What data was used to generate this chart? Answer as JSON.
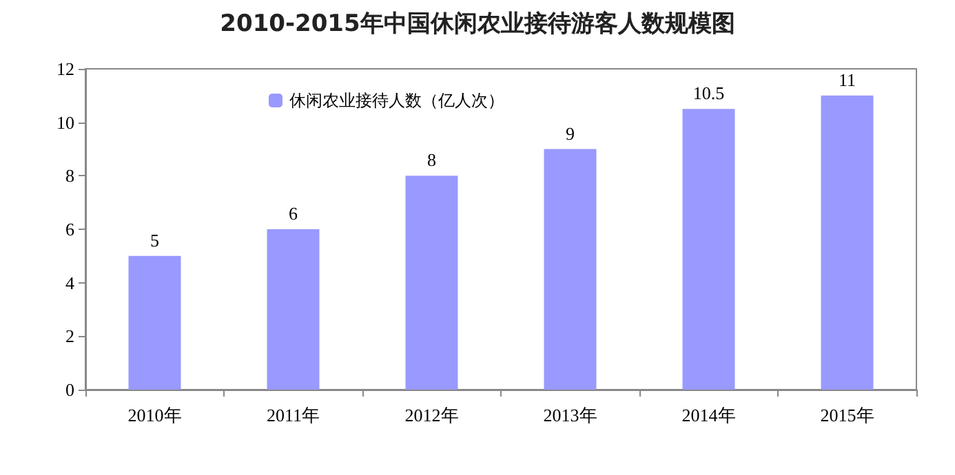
{
  "chart_data": {
    "type": "bar",
    "title": "2010-2015年中国休闲农业接待游客人数规模图",
    "categories": [
      "2010年",
      "2011年",
      "2012年",
      "2013年",
      "2014年",
      "2015年"
    ],
    "series": [
      {
        "name": "休闲农业接待人数（亿人次）",
        "color": "#9999ff",
        "values": [
          5,
          6,
          8,
          9,
          10.5,
          11
        ]
      }
    ],
    "ylim": [
      0,
      12
    ],
    "yticks": [
      0,
      2,
      4,
      6,
      8,
      10,
      12
    ],
    "grid": false,
    "legend": "top left",
    "data_labels": true
  }
}
